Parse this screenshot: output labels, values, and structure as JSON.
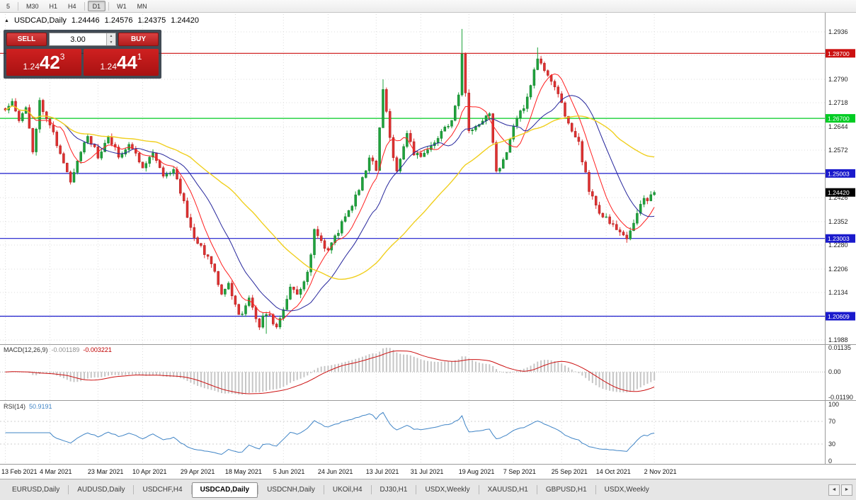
{
  "toolbar": {
    "timeframes": [
      {
        "label": "5",
        "active": false
      },
      {
        "label": "M30",
        "active": false
      },
      {
        "label": "H1",
        "active": false
      },
      {
        "label": "H4",
        "active": false
      },
      {
        "label": "D1",
        "active": true
      },
      {
        "label": "W1",
        "active": false
      },
      {
        "label": "MN",
        "active": false
      }
    ],
    "separators_after": [
      0,
      3,
      4
    ]
  },
  "chart": {
    "collapse_icon": "▲",
    "symbol": "USDCAD,Daily",
    "ohlc": {
      "open": "1.24446",
      "high": "1.24576",
      "low": "1.24375",
      "close": "1.24420"
    },
    "trade_panel": {
      "sell_label": "SELL",
      "buy_label": "BUY",
      "volume": "3.00",
      "spin_up_icon": "▲",
      "spin_down_icon": "▼",
      "sell_price": {
        "prefix": "1.24",
        "big": "42",
        "sup": "3"
      },
      "buy_price": {
        "prefix": "1.24",
        "big": "44",
        "sup": "1"
      }
    },
    "colors": {
      "up": "#1fa33c",
      "up_stroke": "#117a2a",
      "down": "#e03131",
      "down_stroke": "#a31d1d",
      "ma_fast": "#ff1f1f",
      "ma_mid": "#26269c",
      "ma_slow": "#f0cf1e",
      "grid": "#dcdcdc",
      "separator": "#9a9a9a",
      "hline_red": "#cc1111",
      "hline_green": "#00cc22",
      "hline_blue": "#1a1acc",
      "badge_black": "#000000"
    },
    "price_scale": {
      "max": 1.2936,
      "min": 1.1988
    },
    "axis_ticks": [
      "1.2936",
      "1.2864",
      "1.2790",
      "1.2718",
      "1.2644",
      "1.2572",
      "1.2500",
      "1.2426",
      "1.2352",
      "1.2280",
      "1.2206",
      "1.2134",
      "1.2060",
      "1.1988"
    ],
    "hlines": [
      {
        "price": 1.287,
        "label": "1.28700",
        "color_key": "hline_red"
      },
      {
        "price": 1.267,
        "label": "1.26700",
        "color_key": "hline_green"
      },
      {
        "price": 1.25003,
        "label": "1.25003",
        "color_key": "hline_blue"
      },
      {
        "price": 1.23003,
        "label": "1.23003",
        "color_key": "hline_blue"
      },
      {
        "price": 1.20609,
        "label": "1.20609",
        "color_key": "hline_blue"
      }
    ],
    "current_price": {
      "value": 1.2442,
      "label": "1.24420"
    },
    "candles": {
      "count": 190,
      "seed": 11,
      "last_close": 1.2442,
      "anchors": [
        [
          0,
          1.27
        ],
        [
          2,
          1.273
        ],
        [
          4,
          1.2665
        ],
        [
          6,
          1.27
        ],
        [
          8,
          1.257
        ],
        [
          10,
          1.272
        ],
        [
          13,
          1.2655
        ],
        [
          16,
          1.256
        ],
        [
          19,
          1.247
        ],
        [
          21,
          1.2545
        ],
        [
          24,
          1.262
        ],
        [
          27,
          1.255
        ],
        [
          30,
          1.261
        ],
        [
          33,
          1.2555
        ],
        [
          36,
          1.259
        ],
        [
          40,
          1.2525
        ],
        [
          43,
          1.2565
        ],
        [
          46,
          1.2495
        ],
        [
          49,
          1.251
        ],
        [
          52,
          1.2415
        ],
        [
          54,
          1.233
        ],
        [
          57,
          1.227
        ],
        [
          60,
          1.223
        ],
        [
          63,
          1.2135
        ],
        [
          65,
          1.216
        ],
        [
          68,
          1.206
        ],
        [
          71,
          1.211
        ],
        [
          74,
          1.2035
        ],
        [
          76,
          1.2075
        ],
        [
          79,
          1.2025
        ],
        [
          81,
          1.2085
        ],
        [
          83,
          1.215
        ],
        [
          85,
          1.2125
        ],
        [
          88,
          1.2195
        ],
        [
          90,
          1.232
        ],
        [
          92,
          1.2295
        ],
        [
          94,
          1.226
        ],
        [
          97,
          1.2325
        ],
        [
          100,
          1.2385
        ],
        [
          103,
          1.245
        ],
        [
          106,
          1.255
        ],
        [
          108,
          1.2515
        ],
        [
          110,
          1.276
        ],
        [
          112,
          1.2605
        ],
        [
          114,
          1.251
        ],
        [
          117,
          1.2625
        ],
        [
          119,
          1.2565
        ],
        [
          121,
          1.2545
        ],
        [
          124,
          1.2585
        ],
        [
          127,
          1.2625
        ],
        [
          130,
          1.2665
        ],
        [
          132,
          1.274
        ],
        [
          133,
          1.286
        ],
        [
          135,
          1.2625
        ],
        [
          138,
          1.266
        ],
        [
          141,
          1.269
        ],
        [
          143,
          1.2505
        ],
        [
          146,
          1.2565
        ],
        [
          148,
          1.2655
        ],
        [
          151,
          1.2705
        ],
        [
          153,
          1.2775
        ],
        [
          155,
          1.2855
        ],
        [
          157,
          1.2815
        ],
        [
          160,
          1.2765
        ],
        [
          162,
          1.2715
        ],
        [
          164,
          1.2655
        ],
        [
          167,
          1.259
        ],
        [
          170,
          1.245
        ],
        [
          173,
          1.2385
        ],
        [
          176,
          1.2345
        ],
        [
          179,
          1.232
        ],
        [
          181,
          1.2295
        ],
        [
          184,
          1.2385
        ],
        [
          186,
          1.2415
        ],
        [
          189,
          1.2442
        ]
      ],
      "wick_overrides": [
        {
          "i": 76,
          "low": 1.2007
        },
        {
          "i": 110,
          "high": 1.279
        },
        {
          "i": 133,
          "high": 1.2945
        },
        {
          "i": 155,
          "high": 1.2888
        },
        {
          "i": 181,
          "low": 1.2287
        }
      ]
    },
    "mas": [
      {
        "period": 8,
        "color_key": "ma_fast"
      },
      {
        "period": 18,
        "color_key": "ma_mid"
      },
      {
        "period": 45,
        "color_key": "ma_slow"
      }
    ]
  },
  "macd": {
    "name": "MACD(12,26,9)",
    "value_main": "-0.001189",
    "value_signal": "-0.003221",
    "fast": 12,
    "slow": 26,
    "signal": 9,
    "scale": {
      "max": 0.01135,
      "min": -0.0119
    },
    "axis": [
      {
        "label": "0.01135",
        "value": 0.01135
      },
      {
        "label": "0.00",
        "value": 0
      },
      {
        "label": "-0.01190",
        "value": -0.0119
      }
    ],
    "hist_color": "#c6c6c6",
    "signal_color": "#cc1111"
  },
  "rsi": {
    "name": "RSI(14)",
    "value": "50.9191",
    "period": 14,
    "axis": [
      {
        "label": "100",
        "value": 100
      },
      {
        "label": "70",
        "value": 70
      },
      {
        "label": "30",
        "value": 30
      },
      {
        "label": "0",
        "value": 0
      }
    ],
    "levels": [
      70,
      30
    ],
    "line_color": "#3f84c6"
  },
  "dates": [
    {
      "label": "13 Feb 2021",
      "i": 0
    },
    {
      "label": "4 Mar 2021",
      "i": 13
    },
    {
      "label": "23 Mar 2021",
      "i": 27
    },
    {
      "label": "10 Apr 2021",
      "i": 40
    },
    {
      "label": "29 Apr 2021",
      "i": 54
    },
    {
      "label": "18 May 2021",
      "i": 67
    },
    {
      "label": "5 Jun 2021",
      "i": 81
    },
    {
      "label": "24 Jun 2021",
      "i": 94
    },
    {
      "label": "13 Jul 2021",
      "i": 108
    },
    {
      "label": "31 Jul 2021",
      "i": 121
    },
    {
      "label": "19 Aug 2021",
      "i": 135
    },
    {
      "label": "7 Sep 2021",
      "i": 148
    },
    {
      "label": "25 Sep 2021",
      "i": 162
    },
    {
      "label": "14 Oct 2021",
      "i": 175
    },
    {
      "label": "2 Nov 2021",
      "i": 189
    }
  ],
  "tabs": {
    "items": [
      {
        "label": "EURUSD,Daily",
        "active": false
      },
      {
        "label": "AUDUSD,Daily",
        "active": false
      },
      {
        "label": "USDCHF,H4",
        "active": false
      },
      {
        "label": "USDCAD,Daily",
        "active": true
      },
      {
        "label": "USDCNH,Daily",
        "active": false
      },
      {
        "label": "UKOil,H4",
        "active": false
      },
      {
        "label": "DJ30,H1",
        "active": false
      },
      {
        "label": "USDX,Weekly",
        "active": false
      },
      {
        "label": "XAUUSD,H1",
        "active": false
      },
      {
        "label": "GBPUSD,H1",
        "active": false
      },
      {
        "label": "USDX,Weekly",
        "active": false
      }
    ],
    "scroll_left_icon": "◄",
    "scroll_right_icon": "►"
  }
}
